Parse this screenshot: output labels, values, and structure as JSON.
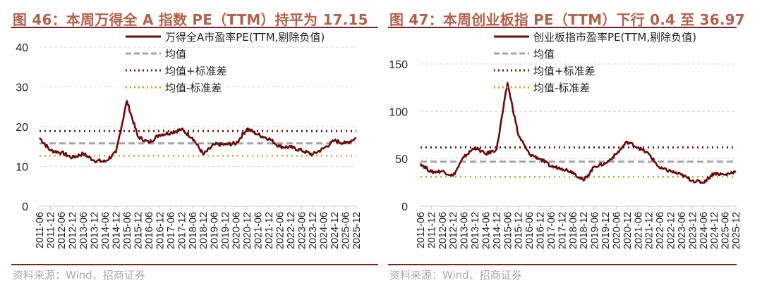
{
  "panels": [
    {
      "title": "图 46：本周万得全 A 指数 PE（TTM）持平为 17.15",
      "source": "资料来源：Wind、招商证券",
      "legend": [
        "万得全A市盈率PE(TTM,剔除负值)",
        "均值",
        "均值+标准差",
        "均值-标准差"
      ]
    },
    {
      "title": "图 47：本周创业板指 PE（TTM）下行 0.4 至 36.97",
      "source": "资料来源：Wind、招商证券",
      "legend": [
        "创业板指市盈率PE(TTM,剔除负值)",
        "均值",
        "均值+标准差",
        "均值-标准差"
      ]
    }
  ],
  "colors": {
    "series": "#6b0a0a",
    "mean": "#a6a6a6",
    "plus_std": "#7a1010",
    "minus_std": "#d4a017",
    "title": "#b5604a",
    "rule": "#8b1a1a"
  },
  "chart_data": [
    {
      "type": "line",
      "title": "图 46：本周万得全 A 指数 PE（TTM）持平为 17.15",
      "xlabel": "",
      "ylabel": "",
      "ylim": [
        0,
        40
      ],
      "yticks": [
        0,
        10,
        20,
        30,
        40
      ],
      "grid": true,
      "legend_position": "top-center",
      "x": [
        "2011-06",
        "2011-12",
        "2012-06",
        "2012-12",
        "2013-06",
        "2013-12",
        "2014-06",
        "2014-12",
        "2015-06",
        "2015-12",
        "2016-06",
        "2016-12",
        "2017-06",
        "2017-12",
        "2018-06",
        "2018-12",
        "2019-06",
        "2019-12",
        "2020-06",
        "2020-12",
        "2021-06",
        "2021-12",
        "2022-06",
        "2022-12",
        "2023-06",
        "2023-12",
        "2024-06",
        "2024-12",
        "2025-06",
        "2025-12"
      ],
      "series": [
        {
          "name": "万得全A市盈率PE(TTM,剔除负值)",
          "values": [
            17.2,
            14.0,
            13.5,
            12.2,
            13.2,
            11.5,
            11.2,
            13.5,
            26.5,
            17.5,
            16.0,
            18.0,
            18.5,
            19.3,
            17.2,
            13.0,
            15.5,
            15.5,
            15.8,
            19.5,
            18.0,
            17.0,
            15.0,
            14.8,
            14.0,
            13.0,
            14.5,
            16.5,
            15.8,
            17.15
          ]
        },
        {
          "name": "均值",
          "values": [
            15.8
          ]
        },
        {
          "name": "均值+标准差",
          "values": [
            18.9
          ]
        },
        {
          "name": "均值-标准差",
          "values": [
            12.7
          ]
        }
      ]
    },
    {
      "type": "line",
      "title": "图 47：本周创业板指 PE（TTM）下行 0.4 至 36.97",
      "xlabel": "",
      "ylabel": "",
      "ylim": [
        0,
        150
      ],
      "yticks": [
        0,
        50,
        100,
        150
      ],
      "grid": true,
      "legend_position": "top-center",
      "x": [
        "2011-06",
        "2011-12",
        "2012-06",
        "2012-12",
        "2013-06",
        "2013-12",
        "2014-06",
        "2014-12",
        "2015-06",
        "2015-12",
        "2016-06",
        "2016-12",
        "2017-06",
        "2017-12",
        "2018-06",
        "2018-12",
        "2019-06",
        "2019-12",
        "2020-06",
        "2020-12",
        "2021-06",
        "2021-12",
        "2022-06",
        "2022-12",
        "2023-06",
        "2023-12",
        "2024-06",
        "2024-12",
        "2025-06",
        "2025-12"
      ],
      "series": [
        {
          "name": "创业板指市盈率PE(TTM,剔除负值)",
          "values": [
            45,
            36,
            37,
            32,
            52,
            62,
            55,
            60,
            130,
            75,
            55,
            50,
            42,
            40,
            36,
            27,
            42,
            45,
            55,
            68,
            62,
            55,
            40,
            37,
            33,
            27,
            25,
            35,
            33,
            36.97
          ]
        },
        {
          "name": "均值",
          "values": [
            47
          ]
        },
        {
          "name": "均值+标准差",
          "values": [
            62
          ]
        },
        {
          "name": "均值-标准差",
          "values": [
            31
          ]
        }
      ]
    }
  ]
}
